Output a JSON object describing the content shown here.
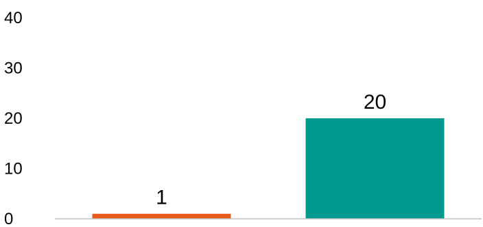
{
  "chart_data": {
    "type": "bar",
    "categories": [
      "",
      ""
    ],
    "values": [
      1,
      20
    ],
    "data_labels": [
      "1",
      "20"
    ],
    "colors": [
      "#e55a1c",
      "#00998f"
    ],
    "ylim": [
      0,
      40
    ],
    "yticks": [
      0,
      10,
      20,
      30,
      40
    ],
    "ytick_labels": [
      "0",
      "10",
      "20",
      "30",
      "40"
    ],
    "title": "",
    "xlabel": "",
    "ylabel": "",
    "grid": false,
    "legend": false
  }
}
